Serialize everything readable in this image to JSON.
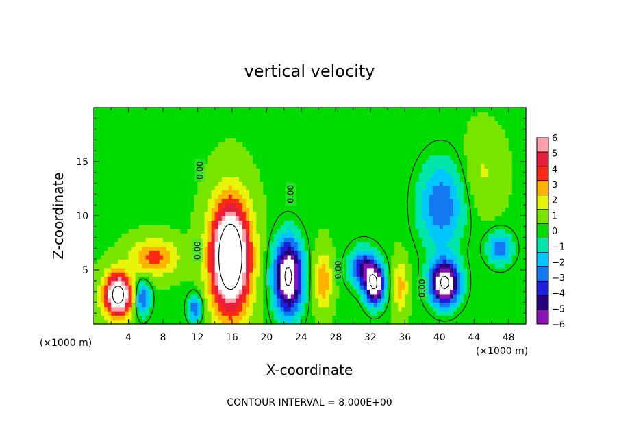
{
  "chart_data": {
    "type": "heatmap",
    "title": "vertical velocity",
    "xlabel": "X-coordinate",
    "ylabel": "Z-coordinate",
    "x_unit": "(×1000 m)",
    "z_unit": "(×1000 m)",
    "xlim": [
      0,
      50
    ],
    "ylim": [
      0,
      20
    ],
    "x_ticks": [
      4,
      8,
      12,
      16,
      20,
      24,
      28,
      32,
      36,
      40,
      44,
      48
    ],
    "y_ticks": [
      5,
      10,
      15
    ],
    "footer_note": "CONTOUR INTERVAL = 8.000E+00",
    "colorbar": {
      "ticks": [
        6,
        5,
        4,
        3,
        2,
        1,
        0,
        -1,
        -2,
        -3,
        -4,
        -5,
        -6
      ],
      "range": [
        -6,
        6
      ]
    },
    "contour_labels": [
      "0.00",
      "0.00",
      "0.00",
      "0.00",
      "0.00"
    ],
    "features": [
      {
        "x": 2.8,
        "z": 2.7,
        "w": 9
      },
      {
        "x": 7.0,
        "z": 6.2,
        "w": 3.5
      },
      {
        "x": 5.6,
        "z": 2.4,
        "w": -4
      },
      {
        "x": 11.7,
        "z": 1.5,
        "w": -4
      },
      {
        "x": 15.8,
        "z": 6.2,
        "w": 11
      },
      {
        "x": 22.5,
        "z": 4.4,
        "w": -9
      },
      {
        "x": 26.5,
        "z": 4.0,
        "w": 3
      },
      {
        "x": 31.2,
        "z": 5.2,
        "w": -5
      },
      {
        "x": 32.5,
        "z": 3.6,
        "w": -8
      },
      {
        "x": 35.5,
        "z": 3.5,
        "w": 2.5
      },
      {
        "x": 40.6,
        "z": 3.8,
        "w": -9
      },
      {
        "x": 40.2,
        "z": 11.0,
        "w": -3.8
      },
      {
        "x": 45.0,
        "z": 14.0,
        "w": 1.2
      },
      {
        "x": 47.0,
        "z": 7.0,
        "w": -3.5
      }
    ]
  }
}
